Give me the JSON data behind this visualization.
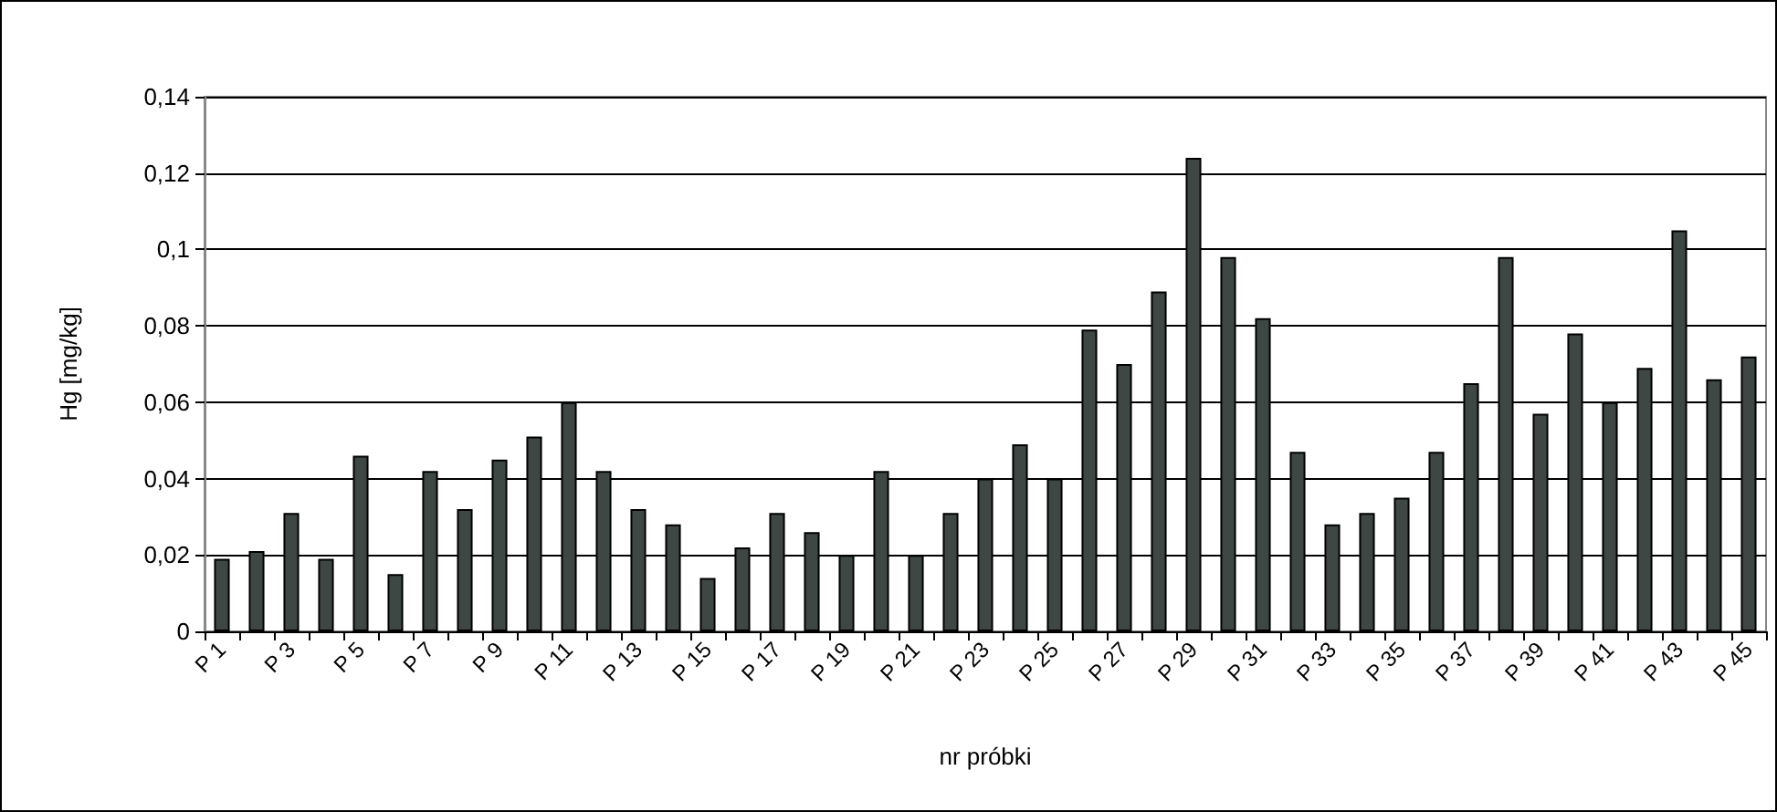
{
  "chart_data": {
    "type": "bar",
    "xlabel": "nr próbki",
    "ylabel": "Hg [mg/kg]",
    "categories": [
      "P 1",
      null,
      "P 3",
      null,
      "P 5",
      null,
      "P 7",
      null,
      "P 9",
      null,
      "P 11",
      null,
      "P 13",
      null,
      "P 15",
      null,
      "P 17",
      null,
      "P 19",
      null,
      "P 21",
      null,
      "P 23",
      null,
      "P 25",
      null,
      "P 27",
      null,
      "P 29",
      null,
      "P 31",
      null,
      "P 33",
      null,
      "P 35",
      null,
      "P 37",
      null,
      "P 39",
      null,
      "P 41",
      null,
      "P 43",
      null,
      "P 45"
    ],
    "values": [
      0.019,
      0.021,
      0.031,
      0.019,
      0.046,
      0.015,
      0.042,
      0.032,
      0.045,
      0.051,
      0.06,
      0.042,
      0.032,
      0.028,
      0.014,
      0.022,
      0.031,
      0.026,
      0.02,
      0.042,
      0.02,
      0.031,
      0.04,
      0.049,
      0.04,
      0.079,
      0.07,
      0.089,
      0.124,
      0.098,
      0.082,
      0.047,
      0.028,
      0.031,
      0.035,
      0.047,
      0.065,
      0.098,
      0.057,
      0.078,
      0.06,
      0.069,
      0.105,
      0.066,
      0.072
    ],
    "color": "#3f4745",
    "ylim": [
      0,
      0.14
    ],
    "yticks": [
      0,
      {
        "value": 0.02,
        "label": "0,02"
      },
      {
        "value": 0.04,
        "label": "0,04"
      },
      {
        "value": 0.06,
        "label": "0,06"
      },
      {
        "value": 0.08,
        "label": "0,08"
      },
      {
        "value": 0.1,
        "label": "0,1"
      },
      {
        "value": 0.12,
        "label": "0,12"
      },
      {
        "value": 0.14,
        "label": "0,14"
      }
    ],
    "grid": "y"
  }
}
